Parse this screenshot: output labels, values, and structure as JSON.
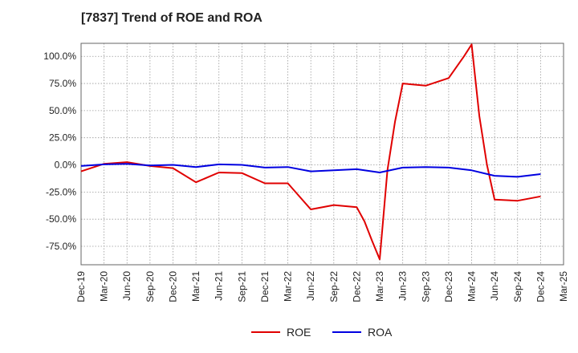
{
  "chart_data": {
    "type": "line",
    "title": "[7837]  Trend of ROE and ROA",
    "xlabel": "",
    "ylabel": "",
    "x_tick_labels": [
      "Dec-19",
      "Mar-20",
      "Jun-20",
      "Sep-20",
      "Dec-20",
      "Mar-21",
      "Jun-21",
      "Sep-21",
      "Dec-21",
      "Mar-22",
      "Jun-22",
      "Sep-22",
      "Dec-22",
      "Mar-23",
      "Jun-23",
      "Sep-23",
      "Dec-23",
      "Mar-24",
      "Jun-24",
      "Sep-24",
      "Dec-24",
      "Mar-25"
    ],
    "y_ticks": [
      100,
      75,
      50,
      25,
      0,
      -25,
      -50,
      -75
    ],
    "y_tick_labels": [
      "100.0%",
      "75.0%",
      "50.0%",
      "25.0%",
      "0.0%",
      "-25.0%",
      "-50.0%",
      "-75.0%"
    ],
    "ylim": [
      -92,
      112
    ],
    "grid": true,
    "legend_position": "bottom-center",
    "series": [
      {
        "name": "ROE",
        "color": "#e00000",
        "points": [
          {
            "x": "Dec-19",
            "y": -6
          },
          {
            "x": "Mar-20",
            "y": 1
          },
          {
            "x": "Jun-20",
            "y": 2.5
          },
          {
            "x": "Sep-20",
            "y": -1
          },
          {
            "x": "Dec-20",
            "y": -3
          },
          {
            "x": "Mar-21",
            "y": -16
          },
          {
            "x": "Jun-21",
            "y": -7
          },
          {
            "x": "Sep-21",
            "y": -7.5
          },
          {
            "x": "Dec-21",
            "y": -17
          },
          {
            "x": "Feb-22",
            "y": -17
          },
          {
            "x": "Mar-22",
            "y": -17
          },
          {
            "x": "Jun-22",
            "y": -41
          },
          {
            "x": "Sep-22",
            "y": -37
          },
          {
            "x": "Dec-22",
            "y": -39
          },
          {
            "x": "Jan-23",
            "y": -52
          },
          {
            "x": "Feb-23",
            "y": -70
          },
          {
            "x": "Mar-23",
            "y": -87
          },
          {
            "x": "Apr-23",
            "y": -5
          },
          {
            "x": "May-23",
            "y": 40
          },
          {
            "x": "Jun-23",
            "y": 75
          },
          {
            "x": "Sep-23",
            "y": 73
          },
          {
            "x": "Dec-23",
            "y": 80
          },
          {
            "x": "Jan-24",
            "y": 90
          },
          {
            "x": "Feb-24",
            "y": 100
          },
          {
            "x": "Mar-24",
            "y": 111
          },
          {
            "x": "Apr-24",
            "y": 45
          },
          {
            "x": "May-24",
            "y": 0
          },
          {
            "x": "Jun-24",
            "y": -32
          },
          {
            "x": "Sep-24",
            "y": -33
          },
          {
            "x": "Dec-24",
            "y": -29
          }
        ]
      },
      {
        "name": "ROA",
        "color": "#0000e0",
        "points": [
          {
            "x": "Dec-19",
            "y": -1
          },
          {
            "x": "Mar-20",
            "y": 0.5
          },
          {
            "x": "Jun-20",
            "y": 1
          },
          {
            "x": "Sep-20",
            "y": -0.5
          },
          {
            "x": "Dec-20",
            "y": 0
          },
          {
            "x": "Mar-21",
            "y": -2
          },
          {
            "x": "Jun-21",
            "y": 0.5
          },
          {
            "x": "Sep-21",
            "y": 0
          },
          {
            "x": "Dec-21",
            "y": -2.5
          },
          {
            "x": "Mar-22",
            "y": -2
          },
          {
            "x": "Jun-22",
            "y": -6
          },
          {
            "x": "Sep-22",
            "y": -5
          },
          {
            "x": "Dec-22",
            "y": -4
          },
          {
            "x": "Mar-23",
            "y": -7
          },
          {
            "x": "Jun-23",
            "y": -2.5
          },
          {
            "x": "Sep-23",
            "y": -2
          },
          {
            "x": "Dec-23",
            "y": -2.5
          },
          {
            "x": "Mar-24",
            "y": -5
          },
          {
            "x": "Jun-24",
            "y": -10
          },
          {
            "x": "Sep-24",
            "y": -11
          },
          {
            "x": "Dec-24",
            "y": -8.5
          }
        ]
      }
    ]
  }
}
